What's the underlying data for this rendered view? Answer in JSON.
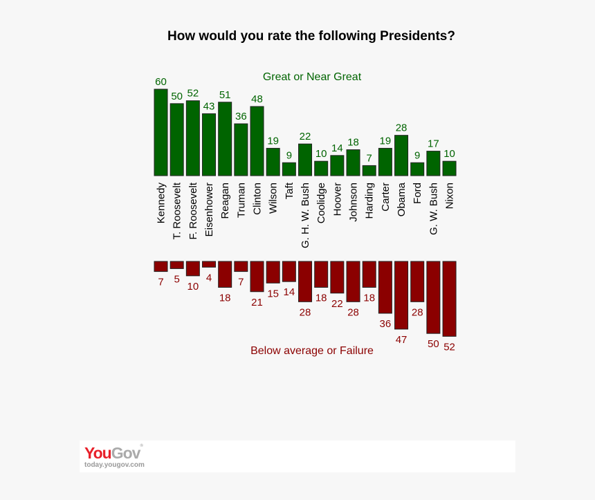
{
  "chart_data": {
    "type": "bar",
    "title": "How would you rate the following Presidents?",
    "categories": [
      "Kennedy",
      "T. Roosevelt",
      "F. Roosevelt",
      "Eisenhower",
      "Reagan",
      "Truman",
      "Clinton",
      "Wilson",
      "Taft",
      "G. H. W. Bush",
      "Coolidge",
      "Hoover",
      "Johnson",
      "Harding",
      "Carter",
      "Obama",
      "Ford",
      "G. W. Bush",
      "Nixon"
    ],
    "series": [
      {
        "name": "Great or Near Great",
        "color": "#006400",
        "values": [
          60,
          50,
          52,
          43,
          51,
          36,
          48,
          19,
          9,
          22,
          10,
          14,
          18,
          7,
          19,
          28,
          9,
          17,
          10
        ]
      },
      {
        "name": "Below average or Failure",
        "color": "#8b0000",
        "values": [
          7,
          5,
          10,
          4,
          18,
          7,
          21,
          15,
          14,
          28,
          18,
          22,
          28,
          18,
          36,
          47,
          28,
          50,
          52
        ]
      }
    ],
    "grid": false
  },
  "footer": {
    "logo_you": "You",
    "logo_gov": "Gov",
    "logo_mark": "®",
    "url": "today.yougov.com"
  }
}
